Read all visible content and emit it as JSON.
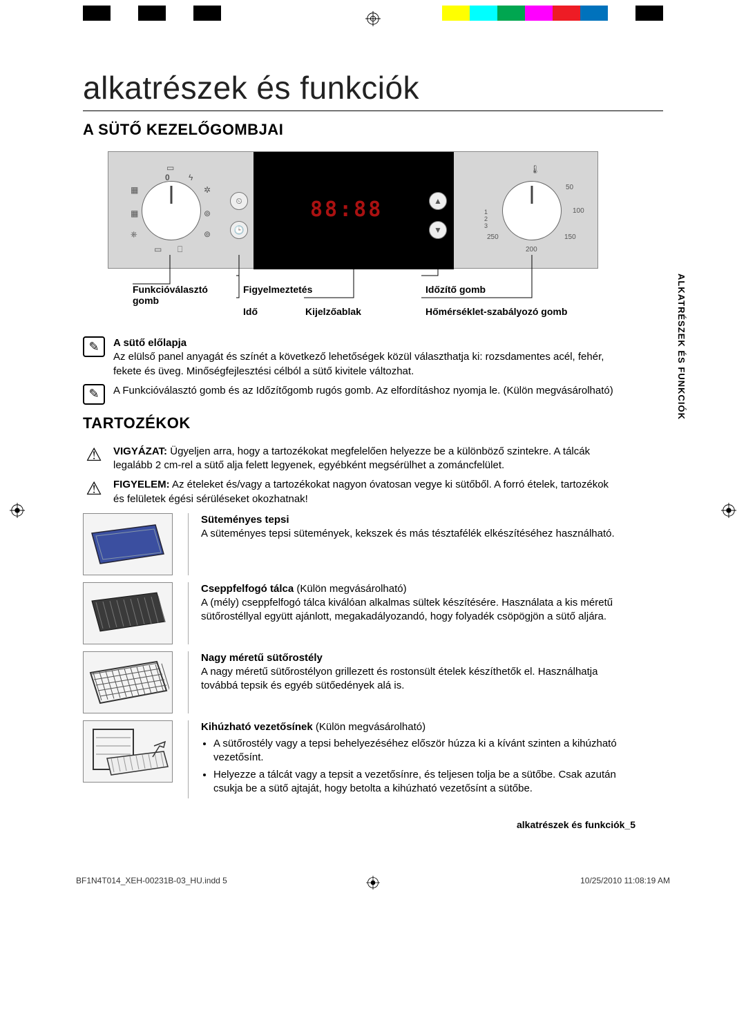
{
  "colorbar": [
    "#000000",
    "#ffffff",
    "#000000",
    "#ffffff",
    "#000000",
    "#ffffff",
    "#ffffff",
    "#ffffff",
    "#ffffff",
    "#ffffff",
    "#ffffff",
    "#ffffff",
    "#ffffff",
    "#ffff00",
    "#00ffff",
    "#00a650",
    "#ff00ff",
    "#ee1c25",
    "#0072bc",
    "#ffffff",
    "#000000"
  ],
  "title": "alkatrészek és funkciók",
  "section1": "A SÜTŐ KEZELŐGOMBJAI",
  "section2": "TARTOZÉKOK",
  "sidetab": "ALKATRÉSZEK ÉS FUNKCIÓK",
  "panel": {
    "display": "88:88",
    "tempTicks": [
      "50",
      "100",
      "150",
      "200",
      "250"
    ],
    "callouts": {
      "func": "Funkcióválasztó gomb",
      "alert": "Figyelmeztetés",
      "time": "Idő",
      "disp": "Kijelzőablak",
      "timer": "Időzítő gomb",
      "temp": "Hőmérséklet-szabályozó gomb"
    }
  },
  "notes": {
    "front_title": "A sütő előlapja",
    "front_body": "Az elülső panel anyagát és színét a következő lehetőségek közül választhatja ki: rozsdamentes acél, fehér, fekete és üveg. Minőségfejlesztési célból a sütő kivitele változhat.",
    "knob_body": "A Funkcióválasztó gomb és az Időzítőgomb rugós gomb. Az elfordításhoz nyomja le. (Külön megvásárolható)",
    "caution_label": "VIGYÁZAT:",
    "caution_body": " Ügyeljen arra, hogy a tartozékokat megfelelően helyezze be a különböző szintekre. A tálcák legalább 2 cm-rel a sütő alja felett legyenek, egyébként megsérülhet a zománcfelület.",
    "warn_label": "FIGYELEM:",
    "warn_body": " Az ételeket és/vagy a tartozékokat nagyon óvatosan vegye ki sütőből. A forró ételek, tartozékok és felületek égési sérüléseket okozhatnak!"
  },
  "accessories": [
    {
      "key": "baking",
      "title": "Süteményes tepsi",
      "suffix": "",
      "body": "A süteményes tepsi sütemények, kekszek és más tésztafélék elkészítéséhez használható.",
      "bullets": [],
      "thumb_fill": "#3b4fa0"
    },
    {
      "key": "drip",
      "title": "Cseppfelfogó tálca",
      "suffix": " (Külön megvásárolható)",
      "body": "A (mély) cseppfelfogó tálca kiválóan alkalmas sültek készítésére. Használata a kis méretű sütőrostéllyal együtt ajánlott, megakadályozandó, hogy folyadék csöpögjön a sütő aljára.",
      "bullets": [],
      "thumb_fill": "#3a3a3a"
    },
    {
      "key": "grid",
      "title": "Nagy méretű sütőrostély",
      "suffix": "",
      "body": "A nagy méretű sütőrostélyon grillezett és rostonsült ételek készíthetők el. Használhatja továbbá tepsik és egyéb sütőedények alá is.",
      "bullets": [],
      "thumb_fill": "none"
    },
    {
      "key": "rails",
      "title": "Kihúzható vezetősínek",
      "suffix": " (Külön megvásárolható)",
      "body": "",
      "bullets": [
        "A sütőrostély vagy a tepsi behelyezéséhez először húzza ki a kívánt szinten a kihúzható vezetősínt.",
        "Helyezze a tálcát vagy a tepsit a vezetősínre, és teljesen tolja be a sütőbe. Csak azután csukja be a sütő ajtaját, hogy betolta a kihúzható vezetősínt a sütőbe."
      ],
      "thumb_fill": "none"
    }
  ],
  "pagefoot": "alkatrészek és funkciók_5",
  "printfoot": {
    "file": "BF1N4T014_XEH-00231B-03_HU.indd   5",
    "date": "10/25/2010   11:08:19 AM"
  }
}
